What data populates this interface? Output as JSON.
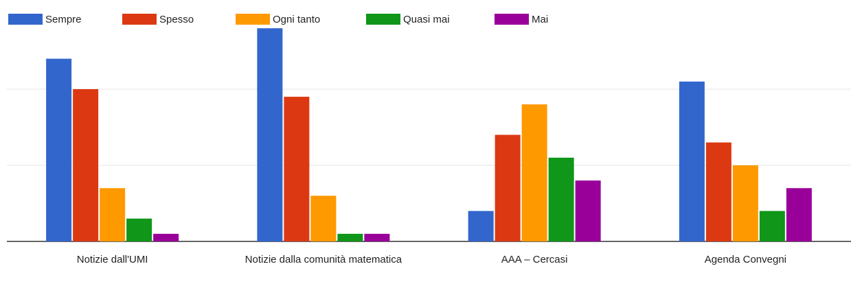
{
  "chart_data": {
    "type": "bar",
    "categories": [
      "Notizie dall'UMI",
      "Notizie dalla comunità matematica",
      "AAA – Cercasi",
      "Agenda Convegni"
    ],
    "series": [
      {
        "name": "Sempre",
        "color": "#3366cc",
        "values": [
          24,
          28,
          4,
          21
        ]
      },
      {
        "name": "Spesso",
        "color": "#dc3912",
        "values": [
          20,
          19,
          14,
          13
        ]
      },
      {
        "name": "Ogni tanto",
        "color": "#ff9900",
        "values": [
          7,
          6,
          18,
          10
        ]
      },
      {
        "name": "Quasi mai",
        "color": "#109618",
        "values": [
          3,
          1,
          11,
          4
        ]
      },
      {
        "name": "Mai",
        "color": "#990099",
        "values": [
          1,
          1,
          8,
          7
        ]
      }
    ],
    "ylim": [
      0,
      30
    ],
    "yticks": [
      0,
      10,
      20
    ],
    "grid": true,
    "legend": "top"
  }
}
